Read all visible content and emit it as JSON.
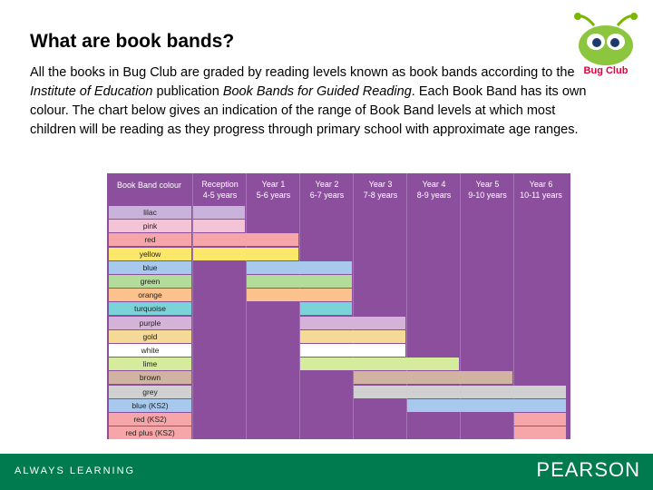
{
  "title": "What are book bands?",
  "logo": {
    "text": "Bug Club"
  },
  "paragraph": {
    "p1": "All the books in Bug Club are graded by reading levels known as book bands according to the ",
    "em1": "Institute of Education",
    "p2": " publication ",
    "em2": "Book Bands for Guided Reading",
    "p3": ". Each Book Band has its own colour. The chart below gives an indication of the range of Book Band levels at which most children will be reading as they progress through primary school with approximate age ranges."
  },
  "chart": {
    "header_label": "Book Band colour",
    "years": [
      "Reception",
      "Year 1",
      "Year 2",
      "Year 3",
      "Year 4",
      "Year 5",
      "Year 6"
    ],
    "ages": [
      "4-5 years",
      "5-6 years",
      "6-7 years",
      "7-8 years",
      "8-9 years",
      "9-10 years",
      "10-11 years"
    ],
    "bands": [
      {
        "label": "lilac",
        "color": "#c9b3da",
        "from": 0,
        "to": 0
      },
      {
        "label": "pink",
        "color": "#f3c3d6",
        "from": 0,
        "to": 0
      },
      {
        "label": "red",
        "color": "#f6a6a8",
        "from": 0,
        "to": 1
      },
      {
        "label": "yellow",
        "color": "#fbe769",
        "from": 0,
        "to": 1
      },
      {
        "label": "blue",
        "color": "#a8c9ee",
        "from": 1,
        "to": 2
      },
      {
        "label": "green",
        "color": "#b3dc9a",
        "from": 1,
        "to": 2
      },
      {
        "label": "orange",
        "color": "#fbc28e",
        "from": 1,
        "to": 2
      },
      {
        "label": "turquoise",
        "color": "#7ad3d9",
        "from": 2,
        "to": 2
      },
      {
        "label": "purple",
        "color": "#d5b3d8",
        "from": 2,
        "to": 3
      },
      {
        "label": "gold",
        "color": "#f4d997",
        "from": 2,
        "to": 3
      },
      {
        "label": "white",
        "color": "#ffffff",
        "from": 2,
        "to": 3
      },
      {
        "label": "lime",
        "color": "#d5ec9d",
        "from": 2,
        "to": 4
      },
      {
        "label": "brown",
        "color": "#d1b3a1",
        "from": 3,
        "to": 5
      },
      {
        "label": "grey",
        "color": "#d0d0d0",
        "from": 3,
        "to": 6
      },
      {
        "label": "blue (KS2)",
        "color": "#a8c9ee",
        "from": 4,
        "to": 6
      },
      {
        "label": "red (KS2)",
        "color": "#f6a6a8",
        "from": 6,
        "to": 6
      },
      {
        "label": "red plus (KS2)",
        "color": "#f6a6a8",
        "from": 6,
        "to": 6
      }
    ]
  },
  "footer": {
    "left": "ALWAYS LEARNING",
    "right": "PEARSON"
  }
}
